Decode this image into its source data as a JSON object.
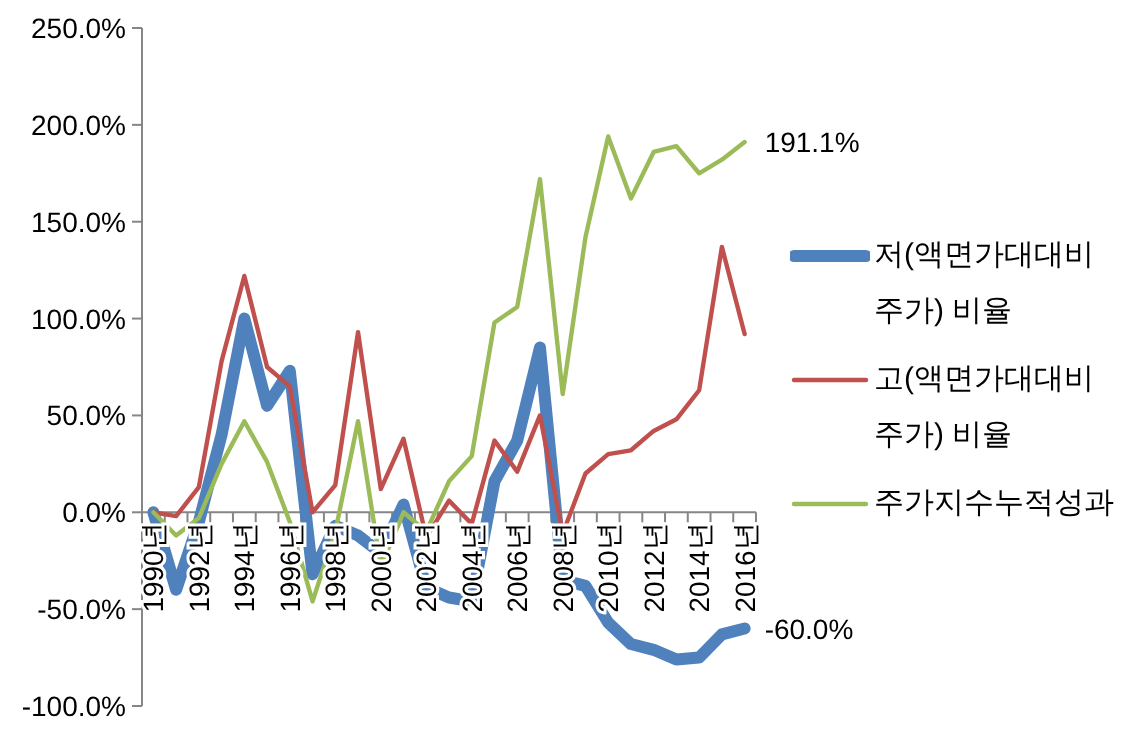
{
  "chart_data": {
    "type": "line",
    "categories": [
      "1990년",
      null,
      "1992년",
      null,
      "1994년",
      null,
      "1996년",
      null,
      "1998년",
      null,
      "2000년",
      null,
      "2002년",
      null,
      "2004년",
      null,
      "2006년",
      null,
      "2008년",
      null,
      "2010년",
      null,
      "2012년",
      null,
      "2014년",
      null,
      "2016년"
    ],
    "series": [
      {
        "name": "저(액면가대대비 주가) 비율",
        "color": "#4f81bd",
        "values": [
          0,
          -40,
          -5,
          40,
          100,
          55,
          73,
          -32,
          -7,
          -12,
          -21,
          4,
          -39,
          -44,
          -46,
          16,
          37,
          85,
          -35,
          -38,
          -57,
          -68,
          -71,
          -76,
          -75,
          -63,
          -60
        ]
      },
      {
        "name": "고(액면가대대비 주가) 비율",
        "color": "#c0504d",
        "values": [
          0,
          -2,
          13,
          78,
          122,
          75,
          65,
          0,
          14,
          93,
          12,
          38,
          -13,
          6,
          -6,
          37,
          21,
          50,
          -11,
          20,
          30,
          32,
          42,
          48,
          63,
          137,
          92
        ]
      },
      {
        "name": "주가지수누적성과",
        "color": "#9bbb59",
        "values": [
          0,
          -12,
          -3,
          25,
          47,
          26,
          -5,
          -46,
          -10,
          47,
          -28,
          0,
          -10,
          16,
          29,
          98,
          106,
          172,
          61,
          142,
          194,
          162,
          186,
          189,
          175,
          182,
          191.1
        ]
      }
    ],
    "ylim": [
      -100,
      250
    ],
    "yticks": [
      {
        "value": -100,
        "label": "-100.0%"
      },
      {
        "value": -50,
        "label": "-50.0%"
      },
      {
        "value": 0,
        "label": "0.0%"
      },
      {
        "value": 50,
        "label": "50.0%"
      },
      {
        "value": 100,
        "label": "100.0%"
      },
      {
        "value": 150,
        "label": "150.0%"
      },
      {
        "value": 200,
        "label": "200.0%"
      },
      {
        "value": 250,
        "label": "250.0%"
      }
    ],
    "annotations": [
      {
        "text": "191.1%",
        "x": "2016년",
        "y": 191.1
      },
      {
        "text": "-60.0%",
        "x": "2016년",
        "y": -60
      }
    ],
    "legend": "right",
    "grid": false
  }
}
